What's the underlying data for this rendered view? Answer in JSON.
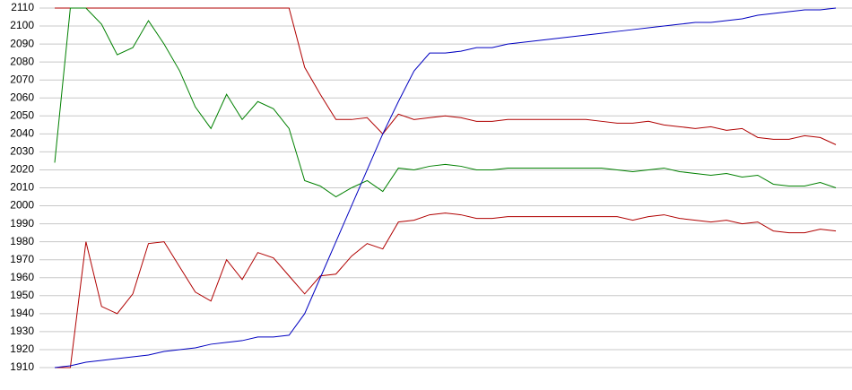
{
  "chart_data": {
    "type": "line",
    "categories": [
      null,
      null,
      null,
      null,
      null,
      null,
      null,
      null,
      null,
      null,
      null,
      null,
      null,
      null,
      null,
      null,
      null,
      null,
      null,
      null,
      null,
      null,
      null,
      null,
      null,
      null,
      null,
      null,
      null,
      null,
      null,
      null,
      null,
      null,
      null,
      null,
      null,
      null,
      null,
      null,
      null,
      null,
      null,
      null,
      null,
      null,
      null,
      null,
      null,
      null,
      null
    ],
    "series": [
      {
        "color": "#b00000",
        "values": [
          2110,
          2110,
          2110,
          2110,
          2110,
          2110,
          2110,
          2110,
          2110,
          2110,
          2110,
          2110,
          2110,
          2110,
          2110,
          2110,
          2077,
          2062,
          2048,
          2048,
          2049,
          2040,
          2051,
          2048,
          2049,
          2050,
          2049,
          2047,
          2047,
          2048,
          2048,
          2048,
          2048,
          2048,
          2048,
          2047,
          2046,
          2046,
          2047,
          2045,
          2044,
          2043,
          2044,
          2042,
          2043,
          2038,
          2037,
          2037,
          2039,
          2038,
          2034
        ]
      },
      {
        "color": "#008000",
        "values": [
          2024,
          2110,
          2110,
          2101,
          2084,
          2088,
          2103,
          2090,
          2075,
          2055,
          2043,
          2062,
          2048,
          2058,
          2054,
          2043,
          2014,
          2011,
          2005,
          2010,
          2014,
          2008,
          2021,
          2020,
          2022,
          2023,
          2022,
          2020,
          2020,
          2021,
          2021,
          2021,
          2021,
          2021,
          2021,
          2021,
          2020,
          2019,
          2020,
          2021,
          2019,
          2018,
          2017,
          2018,
          2016,
          2017,
          2012,
          2011,
          2011,
          2013,
          2010
        ]
      },
      {
        "color": "#b00000",
        "values": [
          1910,
          1910,
          1980,
          1944,
          1940,
          1951,
          1979,
          1980,
          1966,
          1952,
          1947,
          1970,
          1959,
          1974,
          1971,
          1961,
          1951,
          1961,
          1962,
          1972,
          1979,
          1976,
          1991,
          1992,
          1995,
          1996,
          1995,
          1993,
          1993,
          1994,
          1994,
          1994,
          1994,
          1994,
          1994,
          1994,
          1994,
          1992,
          1994,
          1995,
          1993,
          1992,
          1991,
          1992,
          1990,
          1991,
          1986,
          1985,
          1985,
          1987,
          1986
        ]
      },
      {
        "color": "#0000c0",
        "values": [
          1910,
          1911,
          1913,
          1914,
          1915,
          1916,
          1917,
          1919,
          1920,
          1921,
          1923,
          1924,
          1925,
          1927,
          1927,
          1928,
          1940,
          1960,
          1980,
          2000,
          2020,
          2040,
          2058,
          2075,
          2085,
          2085,
          2086,
          2088,
          2088,
          2090,
          2091,
          2092,
          2093,
          2094,
          2095,
          2096,
          2097,
          2098,
          2099,
          2100,
          2101,
          2102,
          2102,
          2103,
          2104,
          2106,
          2107,
          2108,
          2109,
          2109,
          2110
        ]
      }
    ],
    "ylim": [
      1910,
      2110
    ],
    "yticks": [
      1910,
      1920,
      1930,
      1940,
      1950,
      1960,
      1970,
      1980,
      1990,
      2000,
      2010,
      2020,
      2030,
      2040,
      2050,
      2060,
      2070,
      2080,
      2090,
      2100,
      2110
    ],
    "grid": true
  }
}
